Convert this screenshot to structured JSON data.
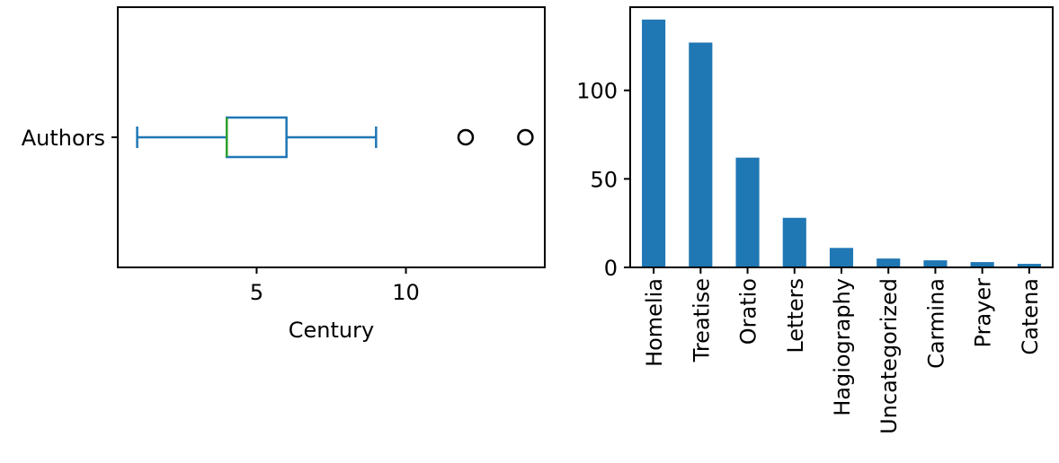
{
  "chart_data": [
    {
      "type": "boxplot",
      "orientation": "horizontal",
      "category": "Authors",
      "xlabel": "Century",
      "xlim": [
        0.35,
        14.65
      ],
      "xticks": [
        5,
        10
      ],
      "stats": {
        "whisker_low": 1,
        "q1": 4,
        "median": 4,
        "q3": 6,
        "whisker_high": 9
      },
      "outliers": [
        12,
        14
      ],
      "colors": {
        "box": "#1f77b4",
        "median": "#2ca02c",
        "outlier": "#000000"
      }
    },
    {
      "type": "bar",
      "categories": [
        "Homelia",
        "Treatise",
        "Oratio",
        "Letters",
        "Hagiography",
        "Uncategorized",
        "Carmina",
        "Prayer",
        "Catena"
      ],
      "values": [
        140,
        127,
        62,
        28,
        11,
        5,
        4,
        3,
        2
      ],
      "ylim": [
        0,
        147
      ],
      "yticks": [
        0,
        50,
        100
      ],
      "color": "#1f77b4"
    }
  ]
}
